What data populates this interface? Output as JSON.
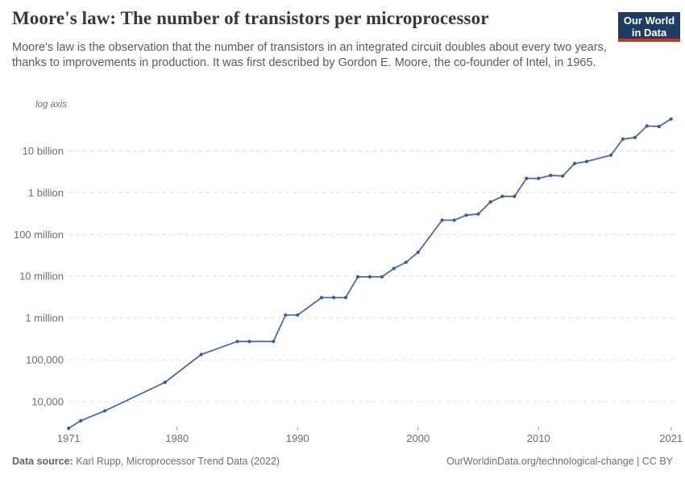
{
  "header": {
    "title": "Moore's law: The number of transistors per microprocessor",
    "subtitle": "Moore's law is the observation that the number of transistors in an integrated circuit doubles about every two years, thanks to improvements in production. It was first described by Gordon E. Moore, the co-founder of Intel, in 1965.",
    "logo": {
      "line1": "Our World",
      "line2": "in Data",
      "bg_color": "#1d3d63",
      "stripe_color": "#c0392b"
    }
  },
  "chart_data": {
    "type": "line",
    "title": "Moore's law: The number of transistors per microprocessor",
    "series_name": "Transistors per microprocessor",
    "log_axis_label": "log axis",
    "y_scale": "log",
    "grid": "horizontal-dashed",
    "x_range": [
      1971,
      2021
    ],
    "x": [
      1971,
      1972,
      1974,
      1979,
      1982,
      1985,
      1986,
      1988,
      1989,
      1990,
      1992,
      1993,
      1994,
      1995,
      1996,
      1997,
      1998,
      1999,
      2000,
      2002,
      2003,
      2004,
      2005,
      2006,
      2007,
      2008,
      2009,
      2010,
      2011,
      2012,
      2013,
      2014,
      2016,
      2017,
      2018,
      2019,
      2020,
      2021
    ],
    "y": [
      2300,
      3500,
      6000,
      29000,
      134000,
      275000,
      275000,
      275000,
      1180000,
      1180000,
      3100000,
      3100000,
      3100000,
      9700000,
      9700000,
      9700000,
      15400000,
      21600000,
      37500000,
      220000000,
      220000000,
      290000000,
      310000000,
      600000000,
      820000000,
      820000000,
      2200000000,
      2200000000,
      2600000000,
      2500000000,
      5000000000,
      5600000000,
      7900000000,
      19200000000,
      21000000000,
      39500000000,
      38500000000,
      58200000000
    ],
    "x_ticks": [
      1971,
      1980,
      1990,
      2000,
      2010,
      2021
    ],
    "y_ticks": [
      {
        "value": 10000,
        "label": "10,000"
      },
      {
        "value": 100000,
        "label": "100,000"
      },
      {
        "value": 1000000,
        "label": "1 million"
      },
      {
        "value": 10000000,
        "label": "10 million"
      },
      {
        "value": 100000000,
        "label": "100 million"
      },
      {
        "value": 1000000000,
        "label": "1 billion"
      },
      {
        "value": 10000000000,
        "label": "10 billion"
      }
    ],
    "line_color": "#4d6ba3",
    "marker_color": "#3c5a98",
    "grid_color": "#dcdcdc",
    "axis_text_color": "#6e6e6e",
    "tick_color": "#999999"
  },
  "footer": {
    "source_label": "Data source:",
    "source_text": " Karl Rupp, Microprocessor Trend Data (2022)",
    "attribution": "OurWorldinData.org/technological-change | CC BY"
  }
}
